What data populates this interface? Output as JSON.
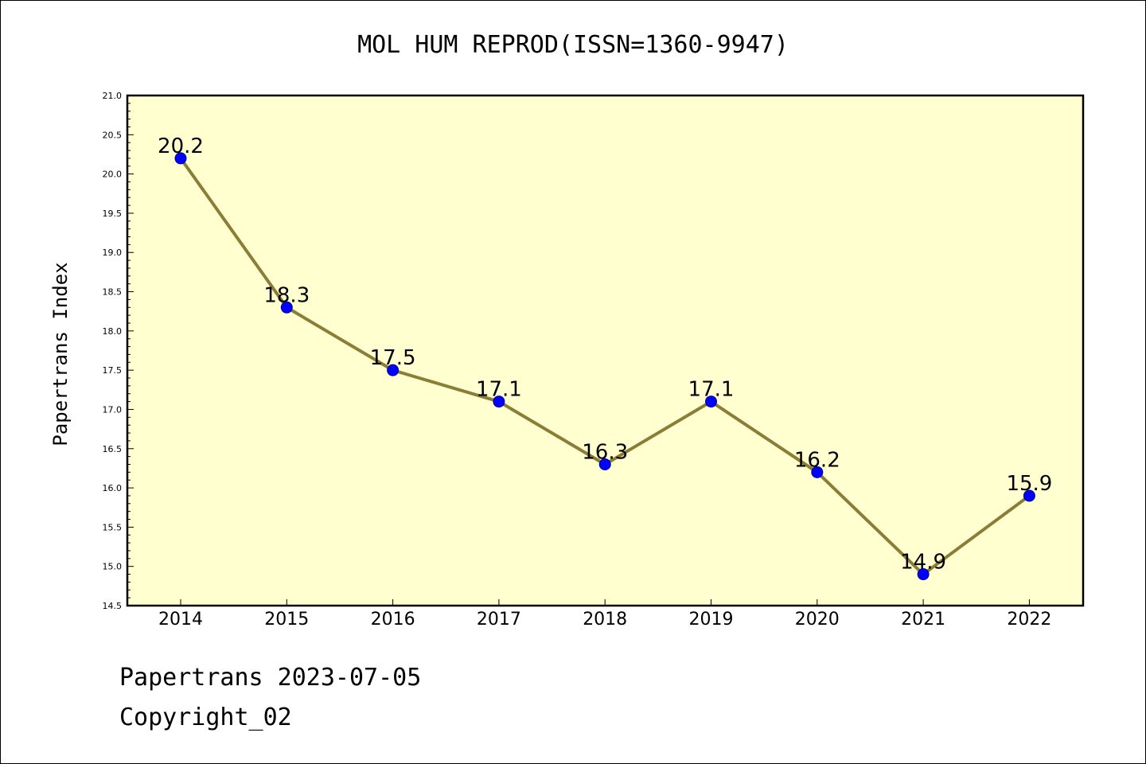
{
  "chart_data": {
    "type": "line",
    "title": "MOL HUM REPROD(ISSN=1360-9947)",
    "ylabel": "Papertrans Index",
    "xlabel": "",
    "categories": [
      "2014",
      "2015",
      "2016",
      "2017",
      "2018",
      "2019",
      "2020",
      "2021",
      "2022"
    ],
    "values": [
      20.2,
      18.3,
      17.5,
      17.1,
      16.3,
      17.1,
      16.2,
      14.9,
      15.9
    ],
    "data_labels": [
      "20.2",
      "18.3",
      "17.5",
      "17.1",
      "16.3",
      "17.1",
      "16.2",
      "14.9",
      "15.9"
    ],
    "ylim": [
      14.5,
      21.0
    ],
    "yticks": [
      "14.5",
      "15.0",
      "15.5",
      "16.0",
      "16.5",
      "17.0",
      "17.5",
      "18.0",
      "18.5",
      "19.0",
      "19.5",
      "20.0",
      "20.5",
      "21.0"
    ],
    "grid": false,
    "colors": {
      "plot_background": "#ffffd0",
      "line": "#8b7d35",
      "marker": "#0000ff",
      "marker_edge": "#00008b"
    }
  },
  "footer": {
    "line1": "Papertrans 2023-07-05",
    "line2": "Copyright_02"
  }
}
